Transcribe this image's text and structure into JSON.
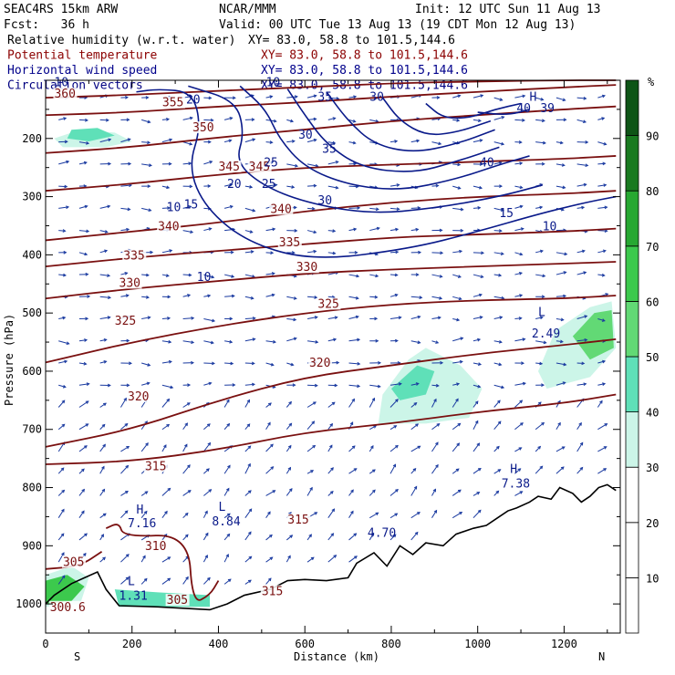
{
  "header": {
    "model": "SEAC4RS 15km ARW",
    "source": "NCAR/MMM",
    "init": "Init: 12 UTC Sun 11 Aug 13",
    "fcst": "Fcst:   36 h",
    "valid": "Valid: 00 UTC Tue 13 Aug 13 (19 CDT Mon 12 Aug 13)",
    "fields": [
      {
        "name": "Relative humidity (w.r.t. water)",
        "xy": "XY=  83.0, 58.8 to 101.5,144.6",
        "color": "#000000"
      },
      {
        "name": "Potential temperature",
        "xy": "XY=  83.0, 58.8 to 101.5,144.6",
        "color": "#8b0000"
      },
      {
        "name": "Horizontal wind speed",
        "xy": "XY=  83.0, 58.8 to 101.5,144.6",
        "color": "#00008b"
      },
      {
        "name": "Circulation vectors",
        "xy": "XY=  83.0, 58.8 to 101.5,144.6",
        "color": "#000080"
      }
    ]
  },
  "colors": {
    "theta": "#7a1010",
    "wind": "#0a1a8a",
    "vectors": "#1a3aa0",
    "terrain": "#000000"
  },
  "chart_data": {
    "type": "heatmap",
    "xlabel": "Distance (km)",
    "ylabel": "Pressure (hPa)",
    "xlim": [
      0,
      1330
    ],
    "ylim": [
      1050,
      100
    ],
    "x_ticks": [
      0,
      200,
      400,
      600,
      800,
      1000,
      1200
    ],
    "y_ticks": [
      1000,
      900,
      800,
      700,
      600,
      500,
      400,
      300,
      200
    ],
    "x_end_labels": {
      "left": "S",
      "right": "N"
    },
    "colorbar": {
      "unit": "%",
      "levels": [
        10,
        20,
        30,
        40,
        50,
        60,
        70,
        80,
        90
      ],
      "colors": [
        "#ffffff",
        "#ffffff",
        "#ffffff",
        "#ccf5e8",
        "#5fe0b8",
        "#62d975",
        "#3cc94d",
        "#27a832",
        "#197a20",
        "#0e5416"
      ]
    },
    "rh_regions": [
      {
        "rh": 35,
        "points": [
          [
            20,
            200
          ],
          [
            80,
            185
          ],
          [
            160,
            190
          ],
          [
            200,
            205
          ],
          [
            140,
            215
          ],
          [
            40,
            215
          ]
        ]
      },
      {
        "rh": 45,
        "points": [
          [
            60,
            185
          ],
          [
            120,
            182
          ],
          [
            160,
            195
          ],
          [
            100,
            205
          ],
          [
            50,
            200
          ]
        ]
      },
      {
        "rh": 35,
        "points": [
          [
            780,
            640
          ],
          [
            840,
            580
          ],
          [
            880,
            560
          ],
          [
            960,
            590
          ],
          [
            1010,
            630
          ],
          [
            980,
            680
          ],
          [
            880,
            690
          ],
          [
            770,
            690
          ]
        ]
      },
      {
        "rh": 45,
        "points": [
          [
            800,
            630
          ],
          [
            860,
            590
          ],
          [
            900,
            600
          ],
          [
            880,
            640
          ],
          [
            820,
            650
          ]
        ]
      },
      {
        "rh": 35,
        "points": [
          [
            1140,
            600
          ],
          [
            1180,
            530
          ],
          [
            1260,
            490
          ],
          [
            1310,
            480
          ],
          [
            1320,
            560
          ],
          [
            1260,
            610
          ],
          [
            1160,
            630
          ]
        ]
      },
      {
        "rh": 55,
        "points": [
          [
            1220,
            540
          ],
          [
            1270,
            500
          ],
          [
            1310,
            495
          ],
          [
            1315,
            560
          ],
          [
            1260,
            580
          ]
        ]
      },
      {
        "rh": 35,
        "points": [
          [
            0,
            950
          ],
          [
            60,
            935
          ],
          [
            100,
            955
          ],
          [
            80,
            1000
          ],
          [
            0,
            1005
          ]
        ]
      },
      {
        "rh": 65,
        "points": [
          [
            0,
            960
          ],
          [
            50,
            950
          ],
          [
            90,
            970
          ],
          [
            60,
            995
          ],
          [
            0,
            1000
          ]
        ]
      },
      {
        "rh": 45,
        "points": [
          [
            160,
            975
          ],
          [
            260,
            980
          ],
          [
            380,
            985
          ],
          [
            380,
            1005
          ],
          [
            170,
            1005
          ]
        ]
      }
    ],
    "theta_labels": [
      {
        "label": "360",
        "x": 20,
        "y": 130
      },
      {
        "label": "355",
        "x": 270,
        "y": 145
      },
      {
        "label": "350",
        "x": 340,
        "y": 188
      },
      {
        "label": "345",
        "x": 400,
        "y": 255
      },
      {
        "label": "345",
        "x": 470,
        "y": 255
      },
      {
        "label": "340",
        "x": 260,
        "y": 358
      },
      {
        "label": "340",
        "x": 520,
        "y": 328
      },
      {
        "label": "335",
        "x": 180,
        "y": 408
      },
      {
        "label": "335",
        "x": 540,
        "y": 385
      },
      {
        "label": "330",
        "x": 170,
        "y": 455
      },
      {
        "label": "330",
        "x": 580,
        "y": 428
      },
      {
        "label": "325",
        "x": 160,
        "y": 520
      },
      {
        "label": "325",
        "x": 630,
        "y": 491
      },
      {
        "label": "320",
        "x": 190,
        "y": 650
      },
      {
        "label": "320",
        "x": 610,
        "y": 592
      },
      {
        "label": "315",
        "x": 230,
        "y": 770
      },
      {
        "label": "315",
        "x": 560,
        "y": 862
      },
      {
        "label": "315",
        "x": 500,
        "y": 985
      },
      {
        "label": "310",
        "x": 230,
        "y": 907
      },
      {
        "label": "305",
        "x": 40,
        "y": 935
      },
      {
        "label": "305",
        "x": 280,
        "y": 1000
      },
      {
        "label": "300.6",
        "x": 10,
        "y": 1012
      }
    ],
    "theta_lines": [
      [
        [
          0,
          760
        ],
        [
          200,
          755
        ],
        [
          400,
          735
        ],
        [
          600,
          705
        ],
        [
          800,
          690
        ],
        [
          1000,
          670
        ],
        [
          1200,
          655
        ],
        [
          1320,
          640
        ]
      ],
      [
        [
          0,
          730
        ],
        [
          200,
          700
        ],
        [
          400,
          650
        ],
        [
          600,
          610
        ],
        [
          800,
          590
        ],
        [
          1000,
          570
        ],
        [
          1200,
          555
        ],
        [
          1320,
          545
        ]
      ],
      [
        [
          0,
          585
        ],
        [
          200,
          550
        ],
        [
          400,
          522
        ],
        [
          600,
          500
        ],
        [
          800,
          485
        ],
        [
          1000,
          478
        ],
        [
          1200,
          475
        ],
        [
          1320,
          470
        ]
      ],
      [
        [
          0,
          475
        ],
        [
          200,
          458
        ],
        [
          400,
          445
        ],
        [
          600,
          432
        ],
        [
          800,
          425
        ],
        [
          1000,
          420
        ],
        [
          1200,
          415
        ],
        [
          1320,
          412
        ]
      ],
      [
        [
          0,
          420
        ],
        [
          200,
          405
        ],
        [
          400,
          393
        ],
        [
          600,
          382
        ],
        [
          800,
          370
        ],
        [
          1000,
          365
        ],
        [
          1200,
          360
        ],
        [
          1320,
          355
        ]
      ],
      [
        [
          0,
          375
        ],
        [
          200,
          360
        ],
        [
          400,
          345
        ],
        [
          600,
          325
        ],
        [
          800,
          310
        ],
        [
          1000,
          300
        ],
        [
          1200,
          295
        ],
        [
          1320,
          290
        ]
      ],
      [
        [
          0,
          290
        ],
        [
          200,
          278
        ],
        [
          400,
          262
        ],
        [
          600,
          250
        ],
        [
          800,
          245
        ],
        [
          1000,
          240
        ],
        [
          1200,
          235
        ],
        [
          1320,
          230
        ]
      ],
      [
        [
          0,
          225
        ],
        [
          200,
          215
        ],
        [
          400,
          198
        ],
        [
          600,
          185
        ],
        [
          800,
          170
        ],
        [
          1000,
          160
        ],
        [
          1200,
          150
        ],
        [
          1320,
          145
        ]
      ],
      [
        [
          0,
          160
        ],
        [
          200,
          155
        ],
        [
          400,
          145
        ],
        [
          600,
          138
        ],
        [
          800,
          128
        ],
        [
          1000,
          120
        ],
        [
          1200,
          112
        ],
        [
          1320,
          108
        ]
      ],
      [
        [
          0,
          130
        ],
        [
          200,
          125
        ],
        [
          400,
          118
        ],
        [
          600,
          112
        ],
        [
          800,
          105
        ],
        [
          1000,
          102
        ],
        [
          1200,
          100
        ],
        [
          1320,
          100
        ]
      ],
      [
        [
          140,
          870
        ],
        [
          170,
          860
        ],
        [
          180,
          885
        ],
        [
          330,
          880
        ],
        [
          340,
          1000
        ],
        [
          380,
          985
        ],
        [
          400,
          960
        ]
      ],
      [
        [
          0,
          940
        ],
        [
          80,
          935
        ],
        [
          130,
          910
        ]
      ]
    ],
    "wind_labels": [
      {
        "label": "10",
        "x": 20,
        "y": 110
      },
      {
        "label": "10",
        "x": 510,
        "y": 110
      },
      {
        "label": "20",
        "x": 325,
        "y": 140
      },
      {
        "label": "35",
        "x": 630,
        "y": 135
      },
      {
        "label": "30",
        "x": 750,
        "y": 135
      },
      {
        "label": "40",
        "x": 1090,
        "y": 155
      },
      {
        "label": "H",
        "x": 1120,
        "y": 135
      },
      {
        "label": "39",
        "x": 1145,
        "y": 155
      },
      {
        "label": "30",
        "x": 585,
        "y": 200
      },
      {
        "label": "35",
        "x": 640,
        "y": 225
      },
      {
        "label": "25",
        "x": 505,
        "y": 248
      },
      {
        "label": "25",
        "x": 500,
        "y": 285
      },
      {
        "label": "20",
        "x": 420,
        "y": 285
      },
      {
        "label": "40",
        "x": 1005,
        "y": 248
      },
      {
        "label": "30",
        "x": 630,
        "y": 313
      },
      {
        "label": "15",
        "x": 1050,
        "y": 335
      },
      {
        "label": "10",
        "x": 1150,
        "y": 358
      },
      {
        "label": "15",
        "x": 320,
        "y": 320
      },
      {
        "label": "10",
        "x": 280,
        "y": 325
      },
      {
        "label": "10",
        "x": 350,
        "y": 445
      },
      {
        "label": "L",
        "x": 1140,
        "y": 505
      },
      {
        "label": "2.49",
        "x": 1125,
        "y": 542
      },
      {
        "label": "H",
        "x": 1075,
        "y": 775
      },
      {
        "label": "7.38",
        "x": 1055,
        "y": 800
      },
      {
        "label": "H",
        "x": 210,
        "y": 845
      },
      {
        "label": "7.16",
        "x": 190,
        "y": 868
      },
      {
        "label": "L",
        "x": 400,
        "y": 840
      },
      {
        "label": "8.84",
        "x": 385,
        "y": 865
      },
      {
        "label": "L",
        "x": 190,
        "y": 968
      },
      {
        "label": "1.31",
        "x": 170,
        "y": 993
      },
      {
        "label": "4.70",
        "x": 745,
        "y": 885
      }
    ],
    "wind_contours": [
      [
        [
          210,
          120
        ],
        [
          260,
          115
        ],
        [
          340,
          120
        ],
        [
          360,
          180
        ],
        [
          330,
          250
        ],
        [
          370,
          320
        ],
        [
          470,
          380
        ],
        [
          620,
          410
        ],
        [
          840,
          390
        ],
        [
          1000,
          360
        ],
        [
          1140,
          330
        ],
        [
          1250,
          310
        ],
        [
          1320,
          300
        ]
      ],
      [
        [
          330,
          110
        ],
        [
          440,
          135
        ],
        [
          460,
          190
        ],
        [
          440,
          240
        ],
        [
          500,
          280
        ],
        [
          600,
          310
        ],
        [
          750,
          330
        ],
        [
          900,
          320
        ],
        [
          1050,
          300
        ],
        [
          1150,
          280
        ]
      ],
      [
        [
          450,
          110
        ],
        [
          510,
          150
        ],
        [
          540,
          200
        ],
        [
          600,
          250
        ],
        [
          700,
          280
        ],
        [
          820,
          290
        ],
        [
          950,
          270
        ],
        [
          1050,
          245
        ],
        [
          1120,
          230
        ]
      ],
      [
        [
          560,
          115
        ],
        [
          600,
          160
        ],
        [
          650,
          210
        ],
        [
          730,
          250
        ],
        [
          850,
          260
        ],
        [
          950,
          240
        ],
        [
          1050,
          215
        ]
      ],
      [
        [
          650,
          120
        ],
        [
          700,
          170
        ],
        [
          760,
          210
        ],
        [
          850,
          225
        ],
        [
          950,
          210
        ],
        [
          1040,
          185
        ]
      ],
      [
        [
          780,
          130
        ],
        [
          820,
          170
        ],
        [
          880,
          195
        ],
        [
          950,
          190
        ],
        [
          1030,
          170
        ]
      ],
      [
        [
          880,
          140
        ],
        [
          920,
          165
        ],
        [
          980,
          165
        ],
        [
          1040,
          150
        ],
        [
          1100,
          140
        ]
      ],
      [
        [
          1000,
          155
        ],
        [
          1070,
          160
        ],
        [
          1120,
          150
        ]
      ]
    ],
    "terrain": [
      [
        0,
        1000
      ],
      [
        20,
        985
      ],
      [
        60,
        965
      ],
      [
        90,
        955
      ],
      [
        120,
        945
      ],
      [
        140,
        975
      ],
      [
        170,
        1003
      ],
      [
        260,
        1005
      ],
      [
        380,
        1010
      ],
      [
        420,
        1000
      ],
      [
        460,
        985
      ],
      [
        520,
        975
      ],
      [
        560,
        960
      ],
      [
        600,
        958
      ],
      [
        650,
        960
      ],
      [
        700,
        955
      ],
      [
        720,
        930
      ],
      [
        760,
        912
      ],
      [
        790,
        935
      ],
      [
        820,
        900
      ],
      [
        850,
        915
      ],
      [
        880,
        895
      ],
      [
        920,
        900
      ],
      [
        950,
        880
      ],
      [
        990,
        870
      ],
      [
        1020,
        865
      ],
      [
        1050,
        850
      ],
      [
        1070,
        840
      ],
      [
        1090,
        835
      ],
      [
        1120,
        825
      ],
      [
        1140,
        815
      ],
      [
        1170,
        820
      ],
      [
        1190,
        800
      ],
      [
        1220,
        810
      ],
      [
        1240,
        825
      ],
      [
        1260,
        815
      ],
      [
        1280,
        800
      ],
      [
        1300,
        795
      ],
      [
        1320,
        805
      ]
    ]
  }
}
